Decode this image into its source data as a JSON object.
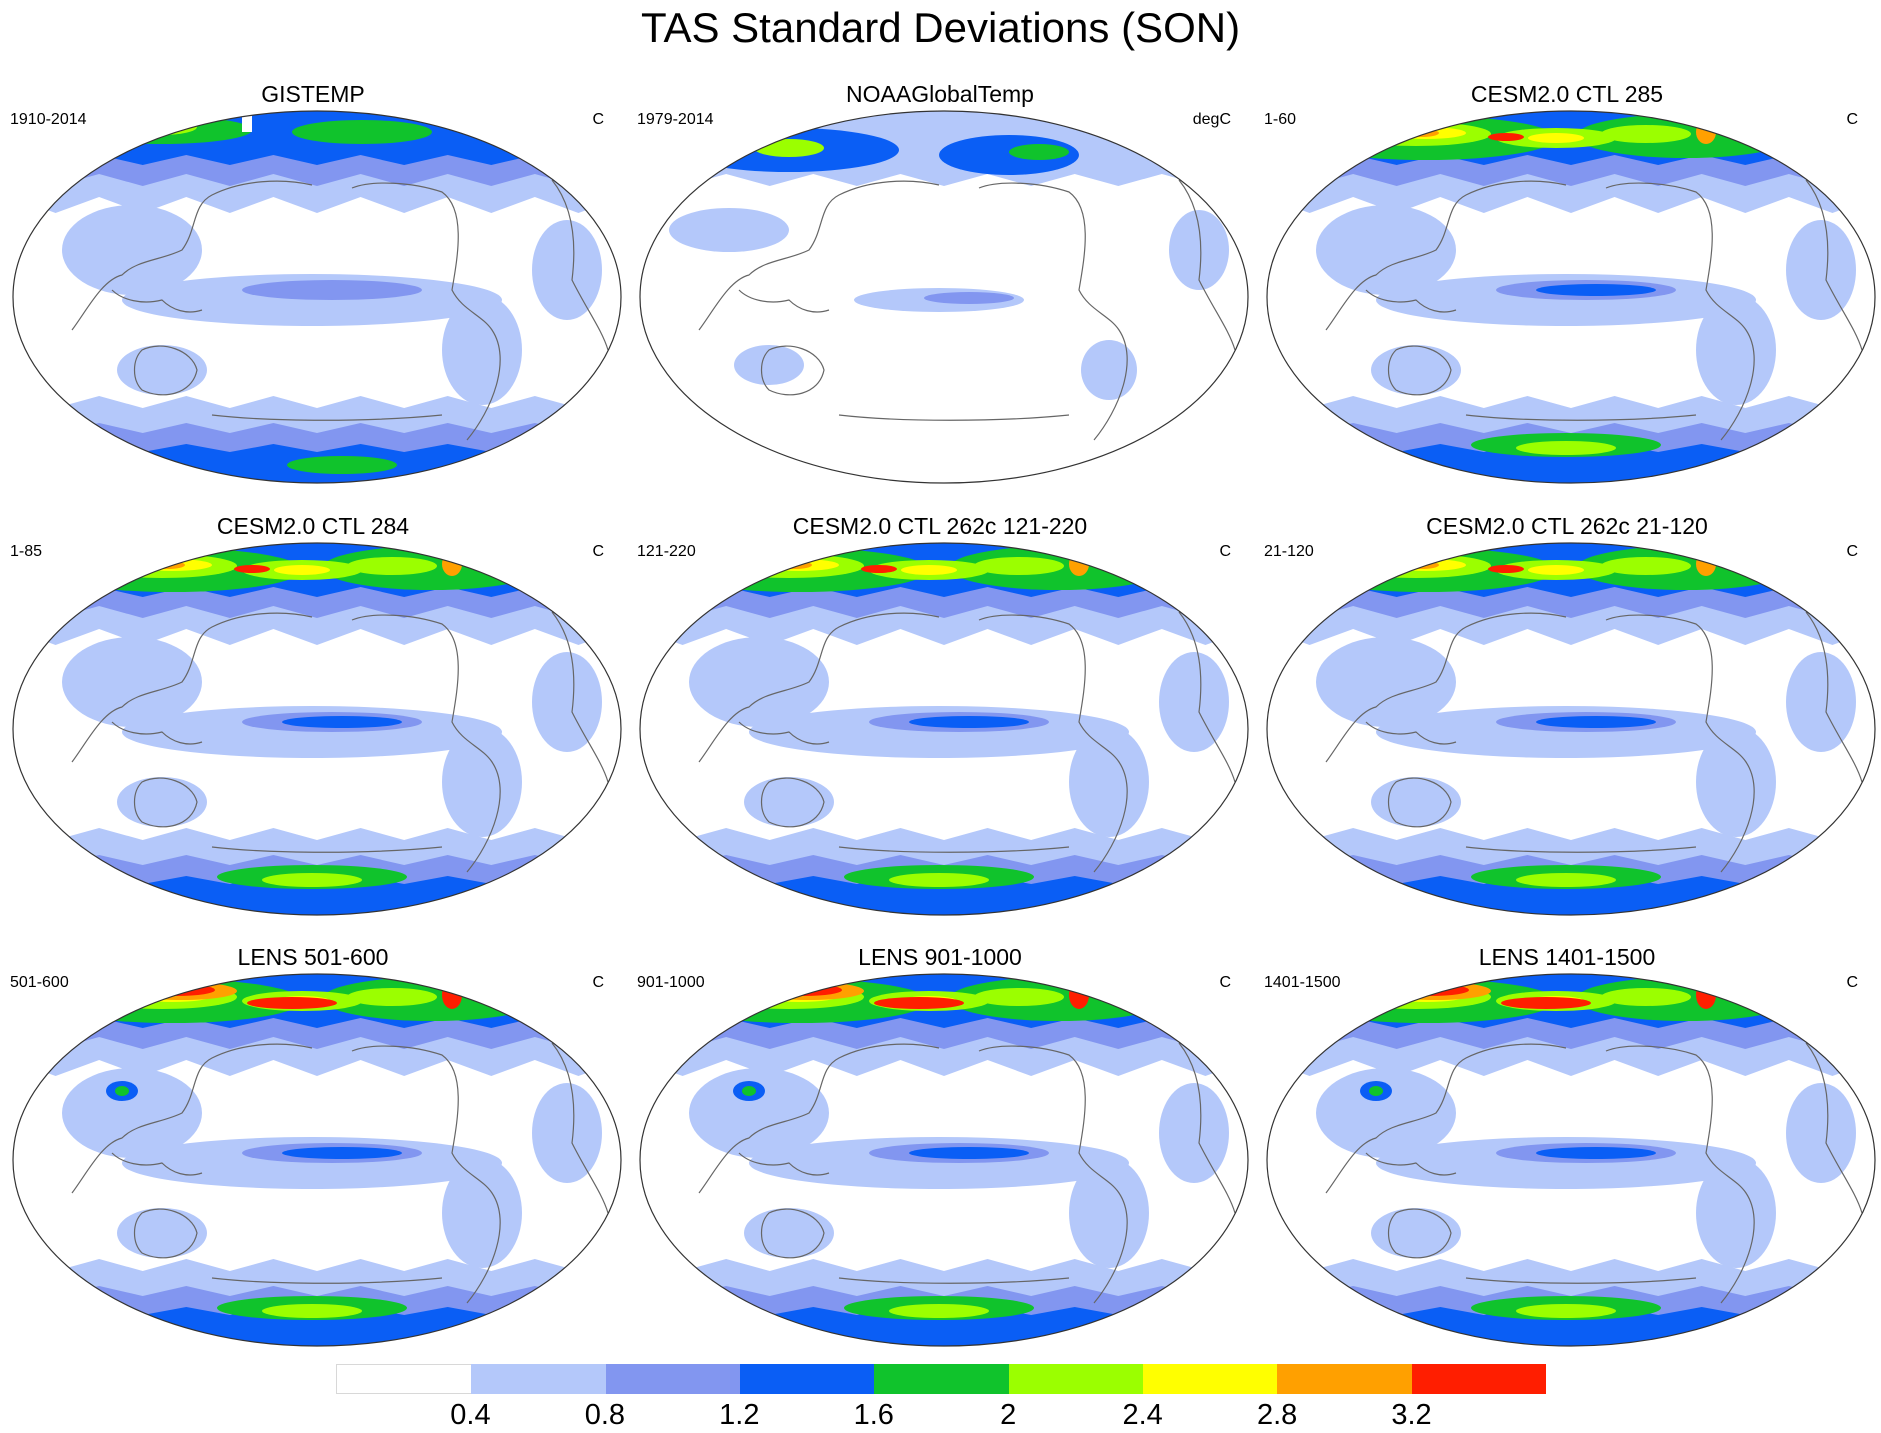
{
  "title": "TAS Standard Deviations (SON)",
  "panels": [
    {
      "name": "GISTEMP",
      "period": "1910-2014",
      "units": "C",
      "style": "gistemp"
    },
    {
      "name": "NOAAGlobalTemp",
      "period": "1979-2014",
      "units": "degC",
      "style": "noaa"
    },
    {
      "name": "CESM2.0 CTL 285",
      "period": "1-60",
      "units": "C",
      "style": "cesm"
    },
    {
      "name": "CESM2.0 CTL 284",
      "period": "1-85",
      "units": "C",
      "style": "cesm"
    },
    {
      "name": "CESM2.0 CTL 262c 121-220",
      "period": "121-220",
      "units": "C",
      "style": "cesm"
    },
    {
      "name": "CESM2.0 CTL 262c 21-120",
      "period": "21-120",
      "units": "C",
      "style": "cesm"
    },
    {
      "name": "LENS 501-600",
      "period": "501-600",
      "units": "C",
      "style": "lens"
    },
    {
      "name": "LENS 901-1000",
      "period": "901-1000",
      "units": "C",
      "style": "lens"
    },
    {
      "name": "LENS 1401-1500",
      "period": "1401-1500",
      "units": "C",
      "style": "lens"
    }
  ],
  "colorbar": {
    "levels": [
      "0.4",
      "0.8",
      "1.2",
      "1.6",
      "2",
      "2.4",
      "2.8",
      "3.2"
    ],
    "colors": [
      "#ffffff",
      "#b4c8fa",
      "#8296f0",
      "#0a5ef5",
      "#10c32c",
      "#9bff00",
      "#ffff00",
      "#ffa000",
      "#ff1e00"
    ]
  }
}
